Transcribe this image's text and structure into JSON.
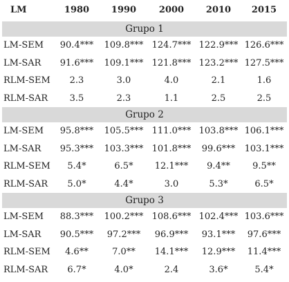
{
  "header": [
    "LM",
    "1980",
    "1990",
    "2000",
    "2010",
    "2015"
  ],
  "groups": [
    {
      "title": "Grupo 1",
      "rows": [
        {
          "label": "LM-SEM",
          "values": [
            "90.4***",
            "109.8***",
            "124.7***",
            "122.9***",
            "126.6***"
          ]
        },
        {
          "label": "LM-SAR",
          "values": [
            "91.6***",
            "109.1***",
            "121.8***",
            "123.2***",
            "127.5***"
          ]
        },
        {
          "label": "RLM-SEM",
          "values": [
            "2.3",
            "3.0",
            "4.0",
            "2.1",
            "1.6"
          ]
        },
        {
          "label": "RLM-SAR",
          "values": [
            "3.5",
            "2.3",
            "1.1",
            "2.5",
            "2.5"
          ]
        }
      ]
    },
    {
      "title": "Grupo 2",
      "rows": [
        {
          "label": "LM-SEM",
          "values": [
            "95.8***",
            "105.5***",
            "111.0***",
            "103.8***",
            "106.1***"
          ]
        },
        {
          "label": "LM-SAR",
          "values": [
            "95.3***",
            "103.3***",
            "101.8***",
            "99.6***",
            "103.1***"
          ]
        },
        {
          "label": "RLM-SEM",
          "values": [
            "5.4*",
            "6.5*",
            "12.1***",
            "9.4**",
            "9.5**"
          ]
        },
        {
          "label": "RLM-SAR",
          "values": [
            "5.0*",
            "4.4*",
            "3.0",
            "5.3*",
            "6.5*"
          ]
        }
      ]
    },
    {
      "title": "Grupo 3",
      "rows": [
        {
          "label": "LM-SEM",
          "values": [
            "88.3***",
            "100.2***",
            "108.6***",
            "102.4***",
            "103.6***"
          ]
        },
        {
          "label": "LM-SAR",
          "values": [
            "90.5***",
            "97.2***",
            "96.9***",
            "93.1***",
            "97.6***"
          ]
        },
        {
          "label": "RLM-SEM",
          "values": [
            "4.6**",
            "7.0**",
            "14.1***",
            "12.9***",
            "11.4***"
          ]
        },
        {
          "label": "RLM-SAR",
          "values": [
            "6.7*",
            "4.0*",
            "2.4",
            "3.6*",
            "5.4*"
          ]
        }
      ]
    }
  ]
}
